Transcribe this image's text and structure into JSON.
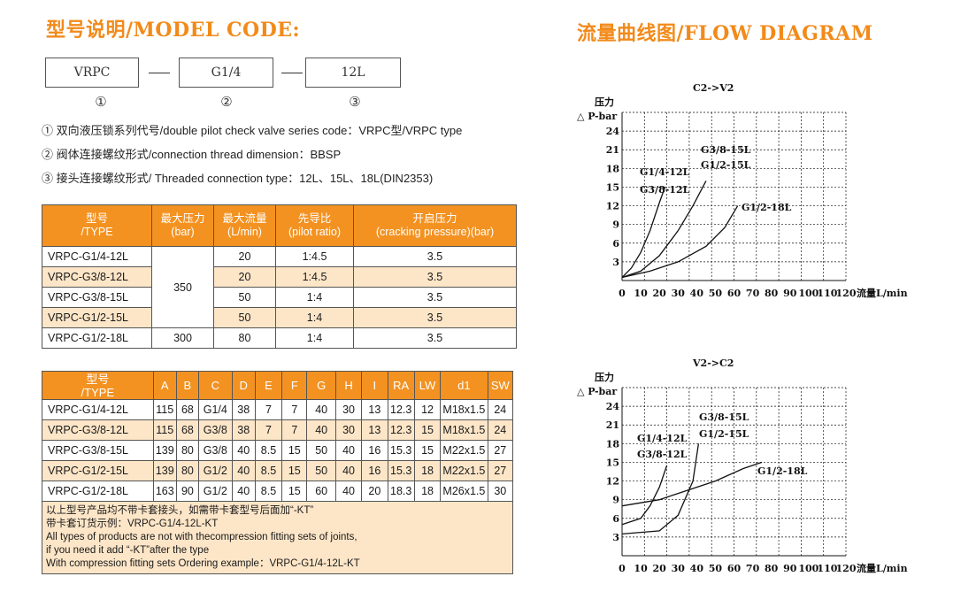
{
  "model_code": {
    "title": "型号说明/MODEL CODE:",
    "boxes": [
      "VRPC",
      "G1/4",
      "12L"
    ],
    "markers": [
      "①",
      "②",
      "③"
    ],
    "descriptions": [
      "① 双向液压锁系列代号/double pilot check valve series code：VRPC型/VRPC type",
      "② 阀体连接螺纹形式/connection thread dimension：BBSP",
      "③ 接头连接螺纹形式/ Threaded connection type：12L、15L、18L(DIN2353)"
    ]
  },
  "table1": {
    "headers": [
      [
        "型号",
        "/TYPE"
      ],
      [
        "最大压力",
        "(bar)"
      ],
      [
        "最大流量",
        "(L/min)"
      ],
      [
        "先导比",
        "(pilot ratio)"
      ],
      [
        "开启压力",
        "(cracking pressure)(bar)"
      ]
    ],
    "rows": [
      {
        "type": "VRPC-G1/4-12L",
        "flow": "20",
        "ratio": "1:4.5",
        "crack": "3.5"
      },
      {
        "type": "VRPC-G3/8-12L",
        "flow": "20",
        "ratio": "1:4.5",
        "crack": "3.5"
      },
      {
        "type": "VRPC-G3/8-15L",
        "flow": "50",
        "ratio": "1:4",
        "crack": "3.5"
      },
      {
        "type": "VRPC-G1/2-15L",
        "flow": "50",
        "ratio": "1:4",
        "crack": "3.5"
      },
      {
        "type": "VRPC-G1/2-18L",
        "flow": "80",
        "ratio": "1:4",
        "crack": "3.5"
      }
    ],
    "pressure_group": "350",
    "pressure_last": "300"
  },
  "table2": {
    "headers": [
      "型号\n/TYPE",
      "A",
      "B",
      "C",
      "D",
      "E",
      "F",
      "G",
      "H",
      "I",
      "RA",
      "LW",
      "d1",
      "SW"
    ],
    "type_header_lines": [
      "型号",
      "/TYPE"
    ],
    "rows": [
      [
        "VRPC-G1/4-12L",
        "115",
        "68",
        "G1/4",
        "38",
        "7",
        "7",
        "40",
        "30",
        "13",
        "12.3",
        "12",
        "M18x1.5",
        "24"
      ],
      [
        "VRPC-G3/8-12L",
        "115",
        "68",
        "G3/8",
        "38",
        "7",
        "7",
        "40",
        "30",
        "13",
        "12.3",
        "15",
        "M18x1.5",
        "24"
      ],
      [
        "VRPC-G3/8-15L",
        "139",
        "80",
        "G3/8",
        "40",
        "8.5",
        "15",
        "50",
        "40",
        "16",
        "15.3",
        "15",
        "M22x1.5",
        "27"
      ],
      [
        "VRPC-G1/2-15L",
        "139",
        "80",
        "G1/2",
        "40",
        "8.5",
        "15",
        "50",
        "40",
        "16",
        "15.3",
        "18",
        "M22x1.5",
        "27"
      ],
      [
        "VRPC-G1/2-18L",
        "163",
        "90",
        "G1/2",
        "40",
        "8.5",
        "15",
        "60",
        "40",
        "20",
        "18.3",
        "18",
        "M26x1.5",
        "30"
      ]
    ],
    "notes": [
      "以上型号产品均不带卡套接头，如需带卡套型号后面加“-KT”",
      "带卡套订货示例：VRPC-G1/4-12L-KT",
      "All types of products are not with thecompression fitting sets of joints,",
      "if you need it add “-KT”after the type",
      "With compression fitting sets Ordering example：VRPC-G1/4-12L-KT"
    ]
  },
  "flow_diagram": {
    "title": "流量曲线图/FLOW DIAGRAM"
  },
  "chart_data": [
    {
      "type": "line",
      "title": "C2->V2",
      "ylabel_lines": [
        "压力",
        "△ P-bar"
      ],
      "xlabel": "流量L/min",
      "xticks": [
        0,
        10,
        20,
        30,
        40,
        50,
        60,
        70,
        80,
        90,
        100,
        110,
        120
      ],
      "yticks": [
        3,
        6,
        9,
        12,
        15,
        18,
        21,
        24
      ],
      "xlim": [
        0,
        120
      ],
      "ylim": [
        0,
        27
      ],
      "grid": true,
      "annotations": [
        "G3/8-15L",
        "G1/2-15L",
        "G1/4-12L",
        "G3/8-12L",
        "G1/2-18L"
      ],
      "series": [
        {
          "name": "G1/4-12L / G3/8-12L",
          "x": [
            0,
            5,
            10,
            15,
            20,
            23
          ],
          "y": [
            0.5,
            2,
            4.5,
            8,
            12.5,
            15
          ]
        },
        {
          "name": "G3/8-15L / G1/2-15L",
          "x": [
            0,
            10,
            20,
            30,
            38,
            45
          ],
          "y": [
            0.5,
            1.5,
            4,
            8,
            12,
            16
          ]
        },
        {
          "name": "G1/2-18L",
          "x": [
            0,
            15,
            30,
            45,
            55,
            62
          ],
          "y": [
            0.5,
            1.5,
            3,
            5.5,
            8.5,
            12
          ]
        }
      ]
    },
    {
      "type": "line",
      "title": "V2->C2",
      "ylabel_lines": [
        "压力",
        "△ P-bar"
      ],
      "xlabel": "流量L/min",
      "xticks": [
        0,
        10,
        20,
        30,
        40,
        50,
        60,
        70,
        80,
        90,
        100,
        110,
        120
      ],
      "yticks": [
        3,
        6,
        9,
        12,
        15,
        18,
        21,
        24
      ],
      "xlim": [
        0,
        120
      ],
      "ylim": [
        0,
        27
      ],
      "grid": true,
      "annotations": [
        "G3/8-15L",
        "G1/2-15L",
        "G1/4-12L",
        "G3/8-12L",
        "G1/2-18L"
      ],
      "series": [
        {
          "name": "G1/4-12L / G3/8-12L",
          "x": [
            0,
            10,
            15,
            20,
            24
          ],
          "y": [
            5,
            6,
            8,
            11,
            14.5
          ]
        },
        {
          "name": "G3/8-15L / G1/2-15L",
          "x": [
            0,
            20,
            30,
            38,
            41
          ],
          "y": [
            3.5,
            4,
            6.5,
            12,
            18
          ]
        },
        {
          "name": "G1/2-18L",
          "x": [
            0,
            20,
            35,
            50,
            65,
            75
          ],
          "y": [
            8,
            9,
            10.5,
            12,
            14,
            15
          ]
        }
      ]
    }
  ]
}
